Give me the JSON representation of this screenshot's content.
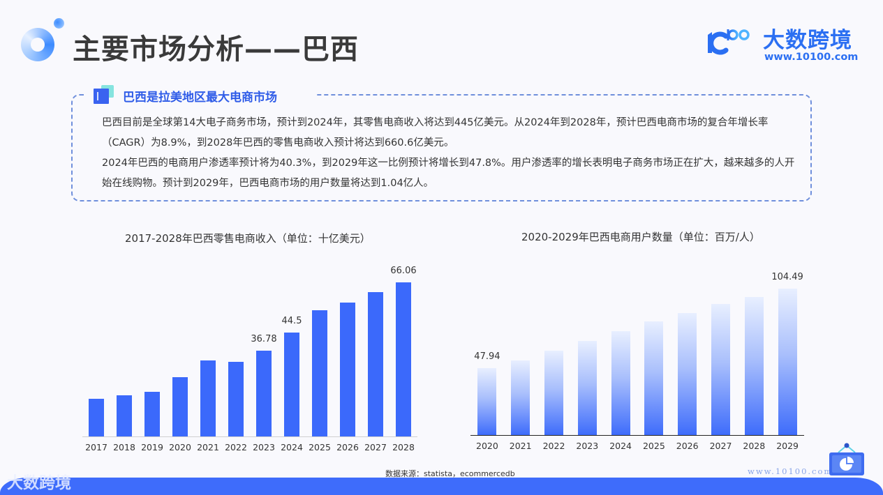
{
  "header": {
    "title": "主要市场分析——巴西",
    "logo_text": "大数跨境",
    "logo_url": "www.10100.com"
  },
  "info_box": {
    "heading": "巴西是拉美地区最大电商市场",
    "paragraphs": [
      "巴西目前是全球第14大电子商务市场，预计到2024年，其零售电商收入将达到445亿美元。从2024年到2028年，预计巴西电商市场的复合年增长率（CAGR）为8.9%，到2028年巴西的零售电商收入预计将达到660.6亿美元。",
      "2024年巴西的电商用户渗透率预计将为40.3%，到2029年这一比例预计将增长到47.8%。用户渗透率的增长表明电子商务市场正在扩大，越来越多的人开始在线购物。预计到2029年，巴西电商市场的用户数量将达到1.04亿人。"
    ]
  },
  "chart_data": [
    {
      "type": "bar",
      "title": "2017-2028年巴西零售电商收入（单位：十亿美元）",
      "xlabel": "",
      "ylabel": "",
      "categories": [
        "2017",
        "2018",
        "2019",
        "2020",
        "2021",
        "2022",
        "2023",
        "2024",
        "2025",
        "2026",
        "2027",
        "2028"
      ],
      "values": [
        16.1,
        17.6,
        19.1,
        25.4,
        32.6,
        32.0,
        36.78,
        44.5,
        54.1,
        57.4,
        61.9,
        66.06
      ],
      "data_labels": {
        "6": "36.78",
        "7": "44.5",
        "11": "66.06"
      },
      "ylim": [
        0,
        70
      ],
      "grid": false,
      "legend": null,
      "color": "#3b69fb"
    },
    {
      "type": "bar",
      "title": "2020-2029年巴西电商用户数量（单位：百万/人）",
      "xlabel": "",
      "ylabel": "",
      "categories": [
        "2020",
        "2021",
        "2022",
        "2023",
        "2024",
        "2025",
        "2026",
        "2027",
        "2028",
        "2029"
      ],
      "values": [
        47.94,
        53.3,
        60.2,
        67.2,
        74.2,
        81.1,
        87.1,
        93.6,
        98.5,
        104.49
      ],
      "data_labels": {
        "0": "47.94",
        "9": "104.49"
      },
      "ylim": [
        0,
        110
      ],
      "grid": false,
      "legend": null,
      "color": "#3e6cfb"
    }
  ],
  "footer": {
    "source": "数据来源：statista，ecommercedb",
    "logo_text": "大数跨境",
    "watermark": "www.10100.com"
  },
  "colors": {
    "accent": "#3b69fb",
    "heading_blue": "#2f5ce8",
    "background": "#f9f9fd"
  }
}
